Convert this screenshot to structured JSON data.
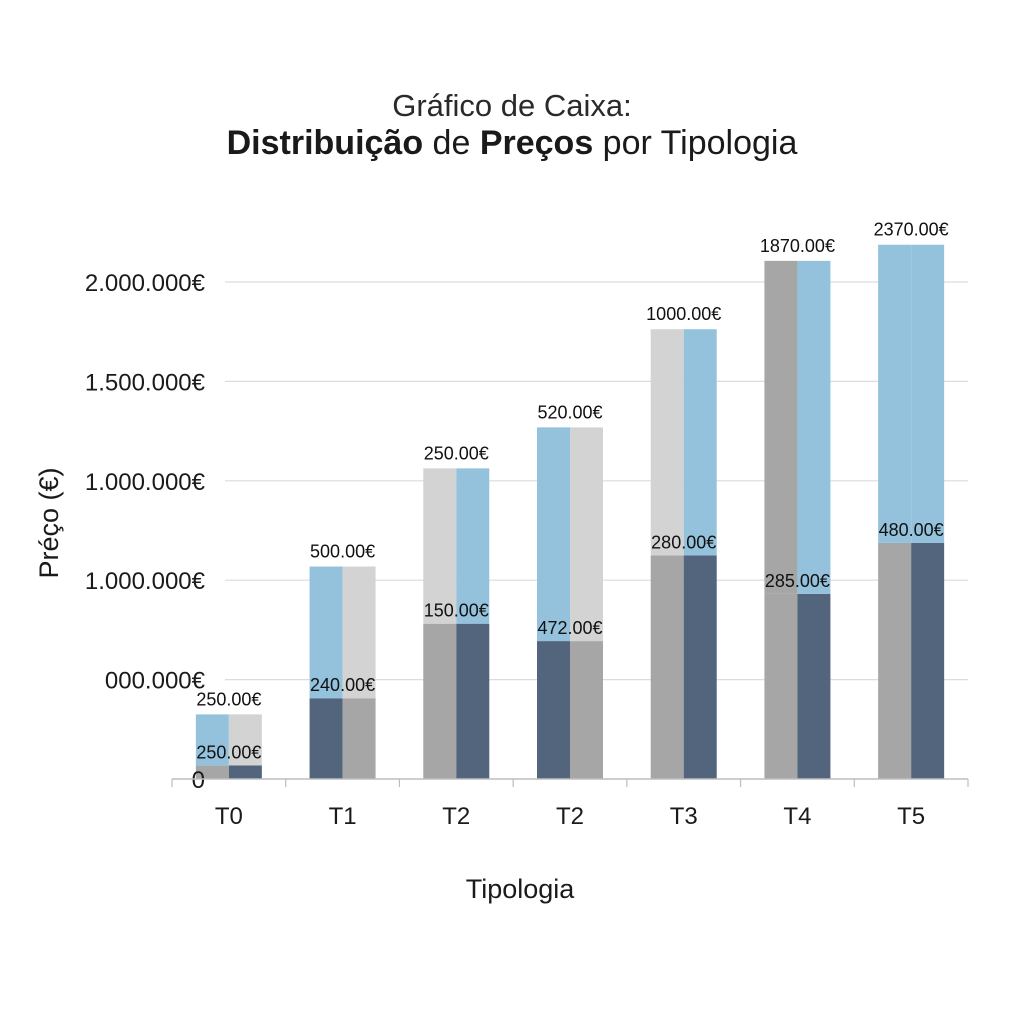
{
  "chart_data": {
    "type": "bar",
    "title": {
      "line1": "Gráfico de Caixa:",
      "line2_parts": [
        {
          "text": "Distribuição",
          "bold": true
        },
        {
          "text": " de ",
          "bold": false
        },
        {
          "text": "Preços",
          "bold": true
        },
        {
          "text": " por Tipologia",
          "bold": false
        }
      ]
    },
    "xlabel": "Tipologia",
    "ylabel": "Préço (€)",
    "y_tick_labels": [
      "0",
      "000.000€",
      "1.000.000€",
      "1.000.000€",
      "1.500.000€",
      "2.000.000€"
    ],
    "ylim": [
      0,
      2000000
    ],
    "grid": true,
    "colors": {
      "dark": "#52657d",
      "mid_gray": "#a6a6a6",
      "light_blue": "#94c2dc",
      "light_gray": "#d3d3d3",
      "grid": "#dcdcdc",
      "axis": "#bdbdbd"
    },
    "categories": [
      "T0",
      "T1",
      "T2",
      "T2",
      "T3",
      "T4",
      "T5"
    ],
    "bars": [
      {
        "category": "T0",
        "lower_value": 55000,
        "upper_value": 260000,
        "top_label": "250.00€",
        "mid_label": "250.00€",
        "left_lower": "mid_gray",
        "right_lower": "dark",
        "left_upper": "light_blue",
        "right_upper": "light_gray"
      },
      {
        "category": "T1",
        "lower_value": 325000,
        "upper_value": 855000,
        "top_label": "500.00€",
        "mid_label": "240.00€",
        "left_lower": "dark",
        "right_lower": "mid_gray",
        "left_upper": "light_blue",
        "right_upper": "light_gray"
      },
      {
        "category": "T2",
        "lower_value": 625000,
        "upper_value": 1250000,
        "top_label": "250.00€",
        "mid_label": "150.00€",
        "left_lower": "mid_gray",
        "right_lower": "dark",
        "left_upper": "light_gray",
        "right_upper": "light_blue"
      },
      {
        "category": "T2",
        "lower_value": 555000,
        "upper_value": 1415000,
        "top_label": "520.00€",
        "mid_label": "472.00€",
        "left_lower": "dark",
        "right_lower": "mid_gray",
        "left_upper": "light_blue",
        "right_upper": "light_gray"
      },
      {
        "category": "T3",
        "lower_value": 900000,
        "upper_value": 1810000,
        "top_label": "1000.00€",
        "mid_label": "280.00€",
        "left_lower": "mid_gray",
        "right_lower": "dark",
        "left_upper": "light_gray",
        "right_upper": "light_blue"
      },
      {
        "category": "T4",
        "lower_value": 745000,
        "upper_value": 2085000,
        "top_label": "1870.00€",
        "mid_label": "285.00€",
        "left_lower": "mid_gray",
        "right_lower": "dark",
        "left_upper": "mid_gray",
        "right_upper": "light_blue"
      },
      {
        "category": "T5",
        "lower_value": 950000,
        "upper_value": 2150000,
        "top_label": "2370.00€",
        "mid_label": "480.00€",
        "left_lower": "mid_gray",
        "right_lower": "dark",
        "left_upper": "light_blue",
        "right_upper": "light_blue"
      }
    ]
  }
}
